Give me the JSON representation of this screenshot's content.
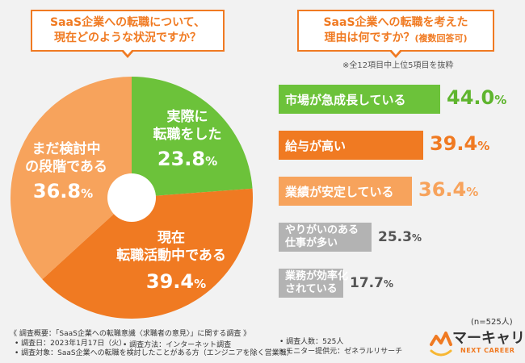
{
  "left_title": {
    "line1": "SaaS企業への転職について、",
    "line2": "現在どのような状況ですか？"
  },
  "right_title": {
    "line1": "SaaS企業への転職を考えた",
    "line2": "理由は何ですか？",
    "line2_sub": "(複数回答可)"
  },
  "note": "※全12項目中上位5項目を抜粋",
  "sample_size": "(n=525人)",
  "chart_data": [
    {
      "type": "pie",
      "slices": [
        {
          "label_lines": [
            "実際に",
            "転職をした"
          ],
          "value": 23.8,
          "value_text": "23.8",
          "unit": "%",
          "color": "#6cc23a"
        },
        {
          "label_lines": [
            "現在",
            "転職活動中である"
          ],
          "value": 39.4,
          "value_text": "39.4",
          "unit": "%",
          "color": "#f07a22"
        },
        {
          "label_lines": [
            "まだ検討中",
            "の段階である"
          ],
          "value": 36.8,
          "value_text": "36.8",
          "unit": "%",
          "color": "#f7a35c"
        }
      ]
    },
    {
      "type": "bar",
      "orientation": "horizontal",
      "bars": [
        {
          "label": "市場が急成長している",
          "value": 44.0,
          "value_text": "44.0",
          "unit": "%",
          "color": "#6cc23a",
          "value_color": "#5fb52e"
        },
        {
          "label": "給与が高い",
          "value": 39.4,
          "value_text": "39.4",
          "unit": "%",
          "color": "#f07a22",
          "value_color": "#f07a22"
        },
        {
          "label": "業績が安定している",
          "value": 36.4,
          "value_text": "36.4",
          "unit": "%",
          "color": "#f7a35c",
          "value_color": "#f7a35c"
        },
        {
          "label": "やりがいのある\n仕事が多い",
          "value": 25.3,
          "value_text": "25.3",
          "unit": "%",
          "color": "#b3b3b3",
          "value_color": "#555555"
        },
        {
          "label": "業務が効率化\nされている",
          "value": 17.7,
          "value_text": "17.7",
          "unit": "%",
          "color": "#b3b3b3",
          "value_color": "#555555"
        }
      ]
    }
  ],
  "footer": {
    "summary": "《 調査概要：「SaaS企業への転職意識〈求職者の意見〉」に関する調査 》",
    "date": "• 調査日：2023年1月17日（火）",
    "method": "• 調査方法：インターネット調査",
    "target": "• 調査対象：SaaS企業への転職を検討したことがある方（エンジニアを除く営業職）",
    "respondents": "• 調査人数：525人",
    "provider": "• モニター提供元：ゼネラルリサーチ"
  },
  "logo": {
    "name": "マーキャリ",
    "sub": "NEXT CAREER"
  }
}
